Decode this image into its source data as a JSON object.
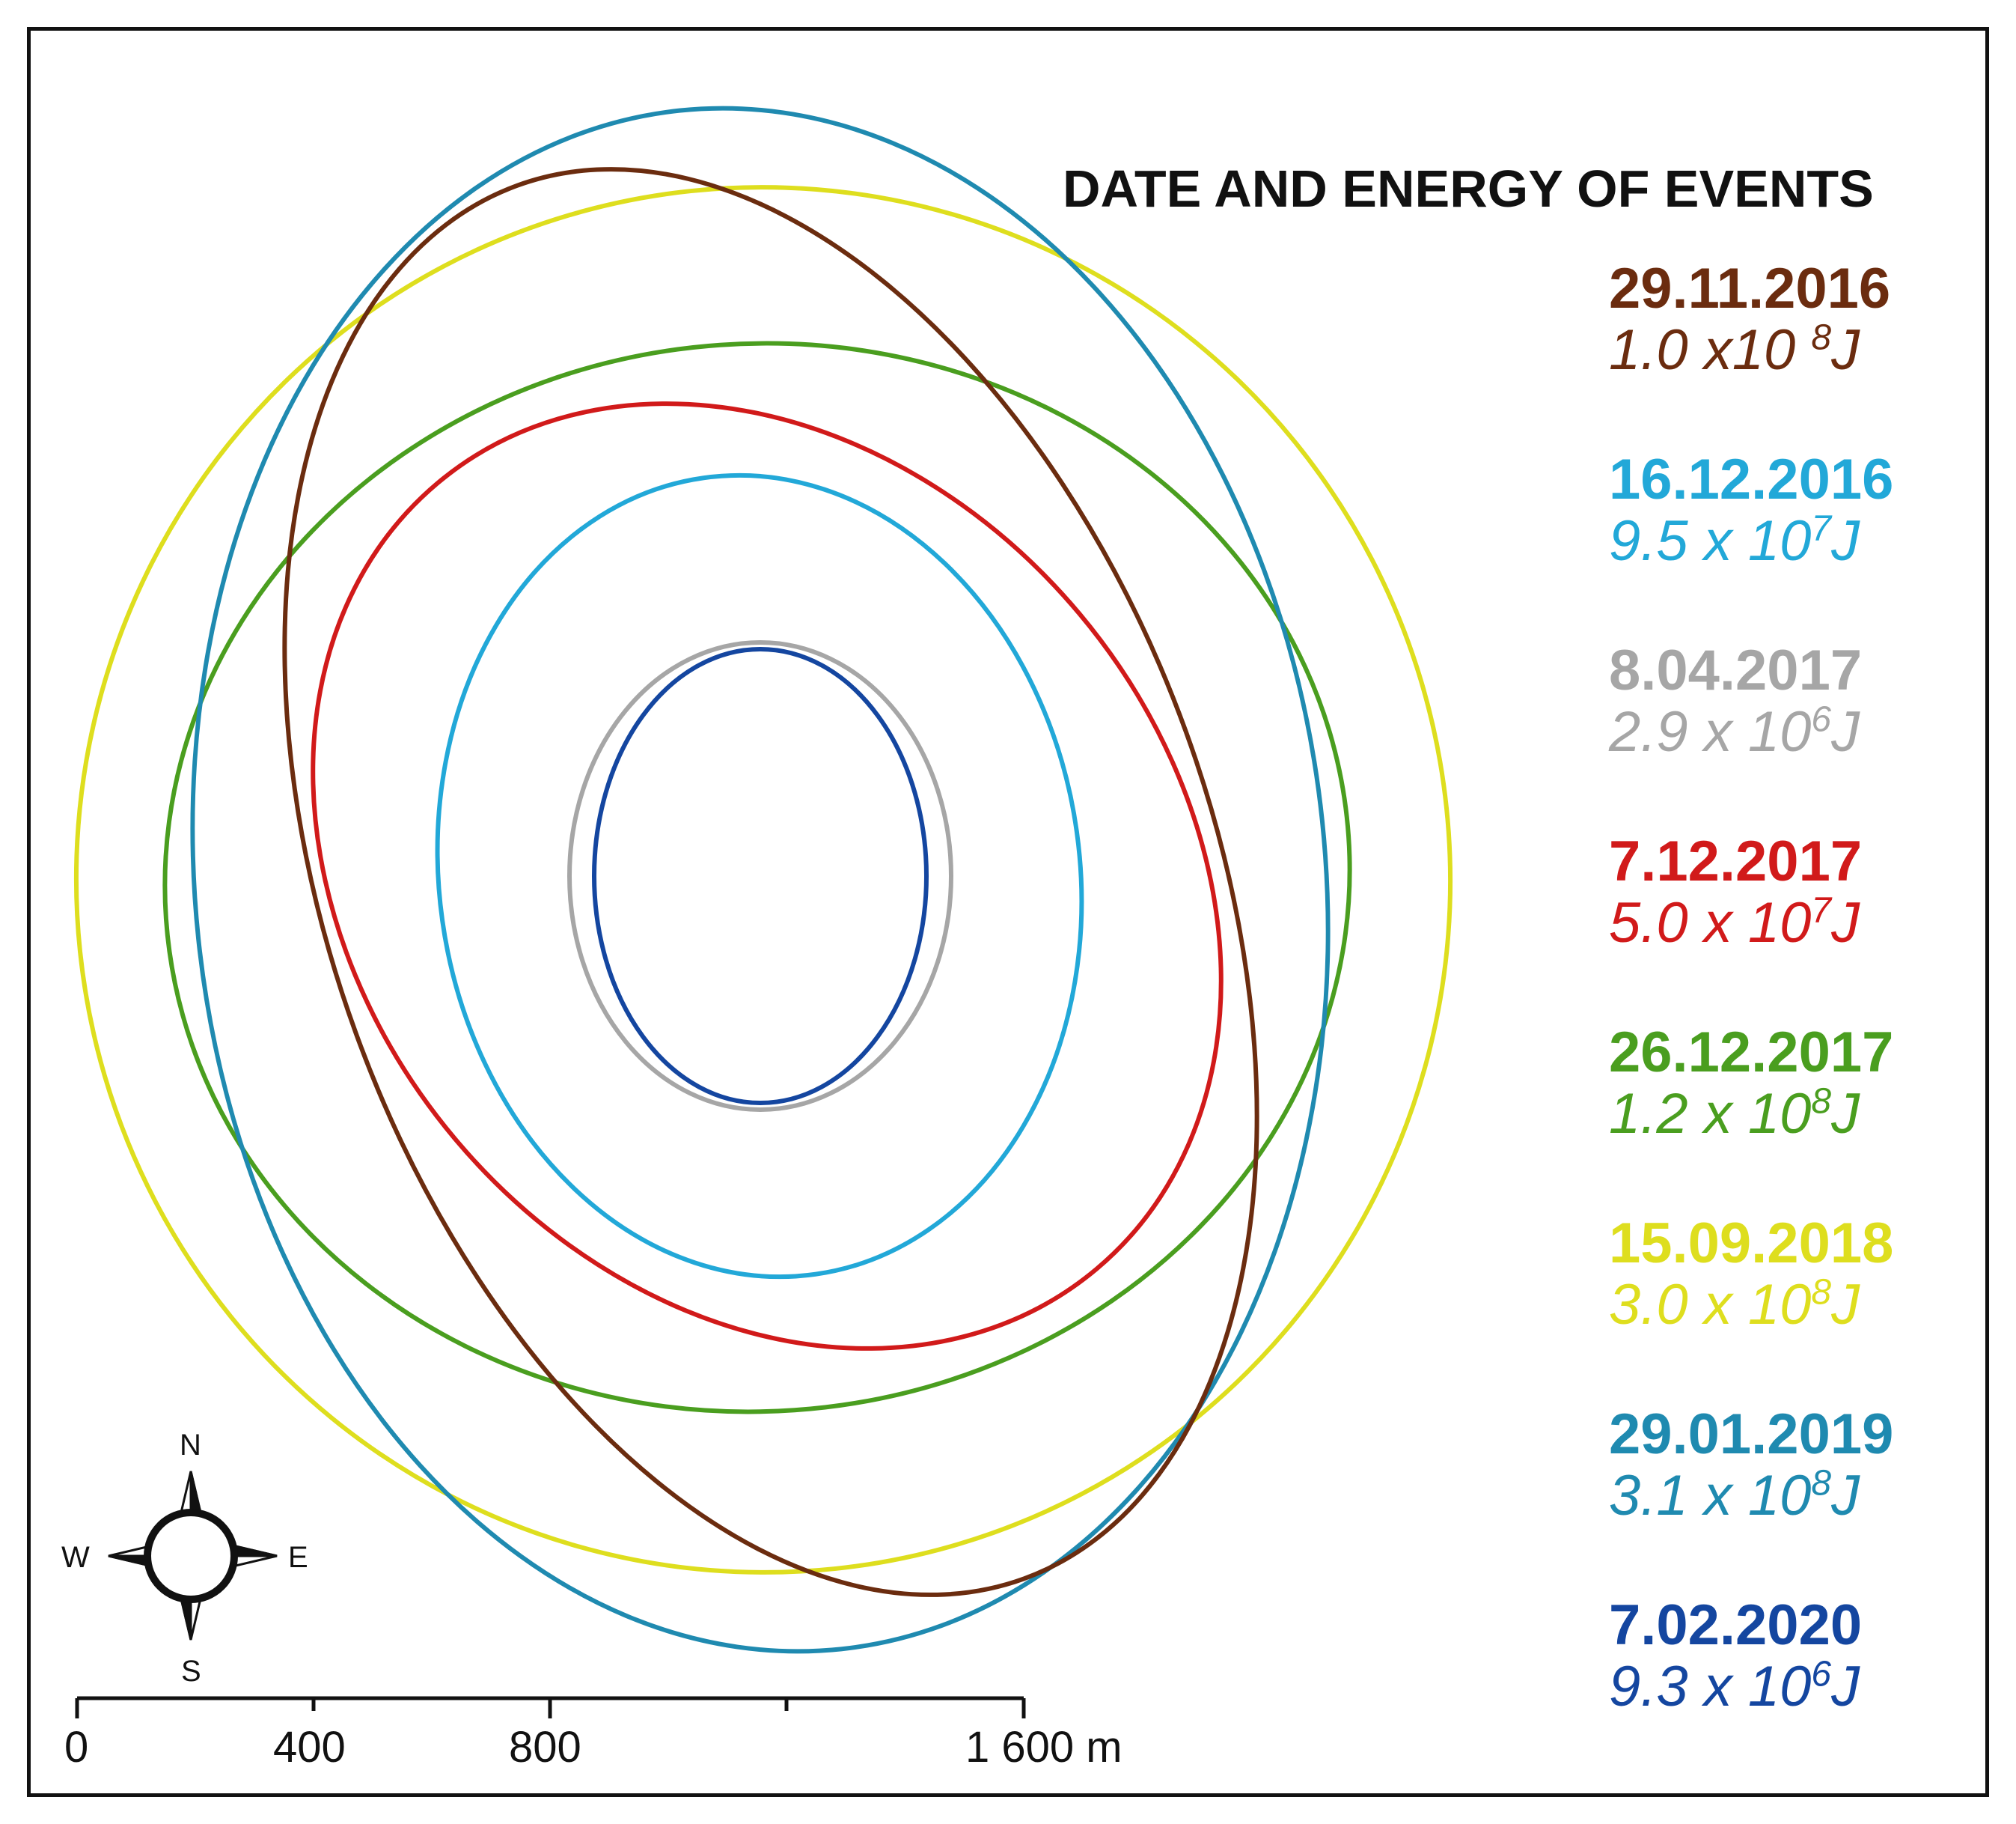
{
  "legend": {
    "title": "DATE AND ENERGY OF EVENTS",
    "items": [
      {
        "date": "29.11.2016",
        "energy_base": "1.0 x10 ",
        "energy_exp": "8",
        "energy_unit": "J",
        "color": "#6b2c0f"
      },
      {
        "date": "16.12.2016",
        "energy_base": "9.5 x 10",
        "energy_exp": "7",
        "energy_unit": "J",
        "color": "#22a8d8"
      },
      {
        "date": "8.04.2017",
        "energy_base": "2.9 x 10",
        "energy_exp": "6",
        "energy_unit": "J",
        "color": "#a6a6a6"
      },
      {
        "date": "7.12.2017",
        "energy_base": "5.0 x 10",
        "energy_exp": "7",
        "energy_unit": "J",
        "color": "#d11a1a"
      },
      {
        "date": "26.12.2017",
        "energy_base": "1.2 x 10",
        "energy_exp": "8",
        "energy_unit": "J",
        "color": "#4a9e1f"
      },
      {
        "date": "15.09.2018",
        "energy_base": "3.0 x 10",
        "energy_exp": "8",
        "energy_unit": "J",
        "color": "#dede1e"
      },
      {
        "date": "29.01.2019",
        "energy_base": "3.1 x 10",
        "energy_exp": "8",
        "energy_unit": "J",
        "color": "#1f8ab0"
      },
      {
        "date": "7.02.2020",
        "energy_base": "9.3 x 10",
        "energy_exp": "6",
        "energy_unit": "J",
        "color": "#1446a0"
      }
    ]
  },
  "compass": {
    "north": "N",
    "south": "S",
    "east": "E",
    "west": "W"
  },
  "scale_bar": {
    "labels": [
      "0",
      "400",
      "800",
      "1 600 m"
    ]
  }
}
